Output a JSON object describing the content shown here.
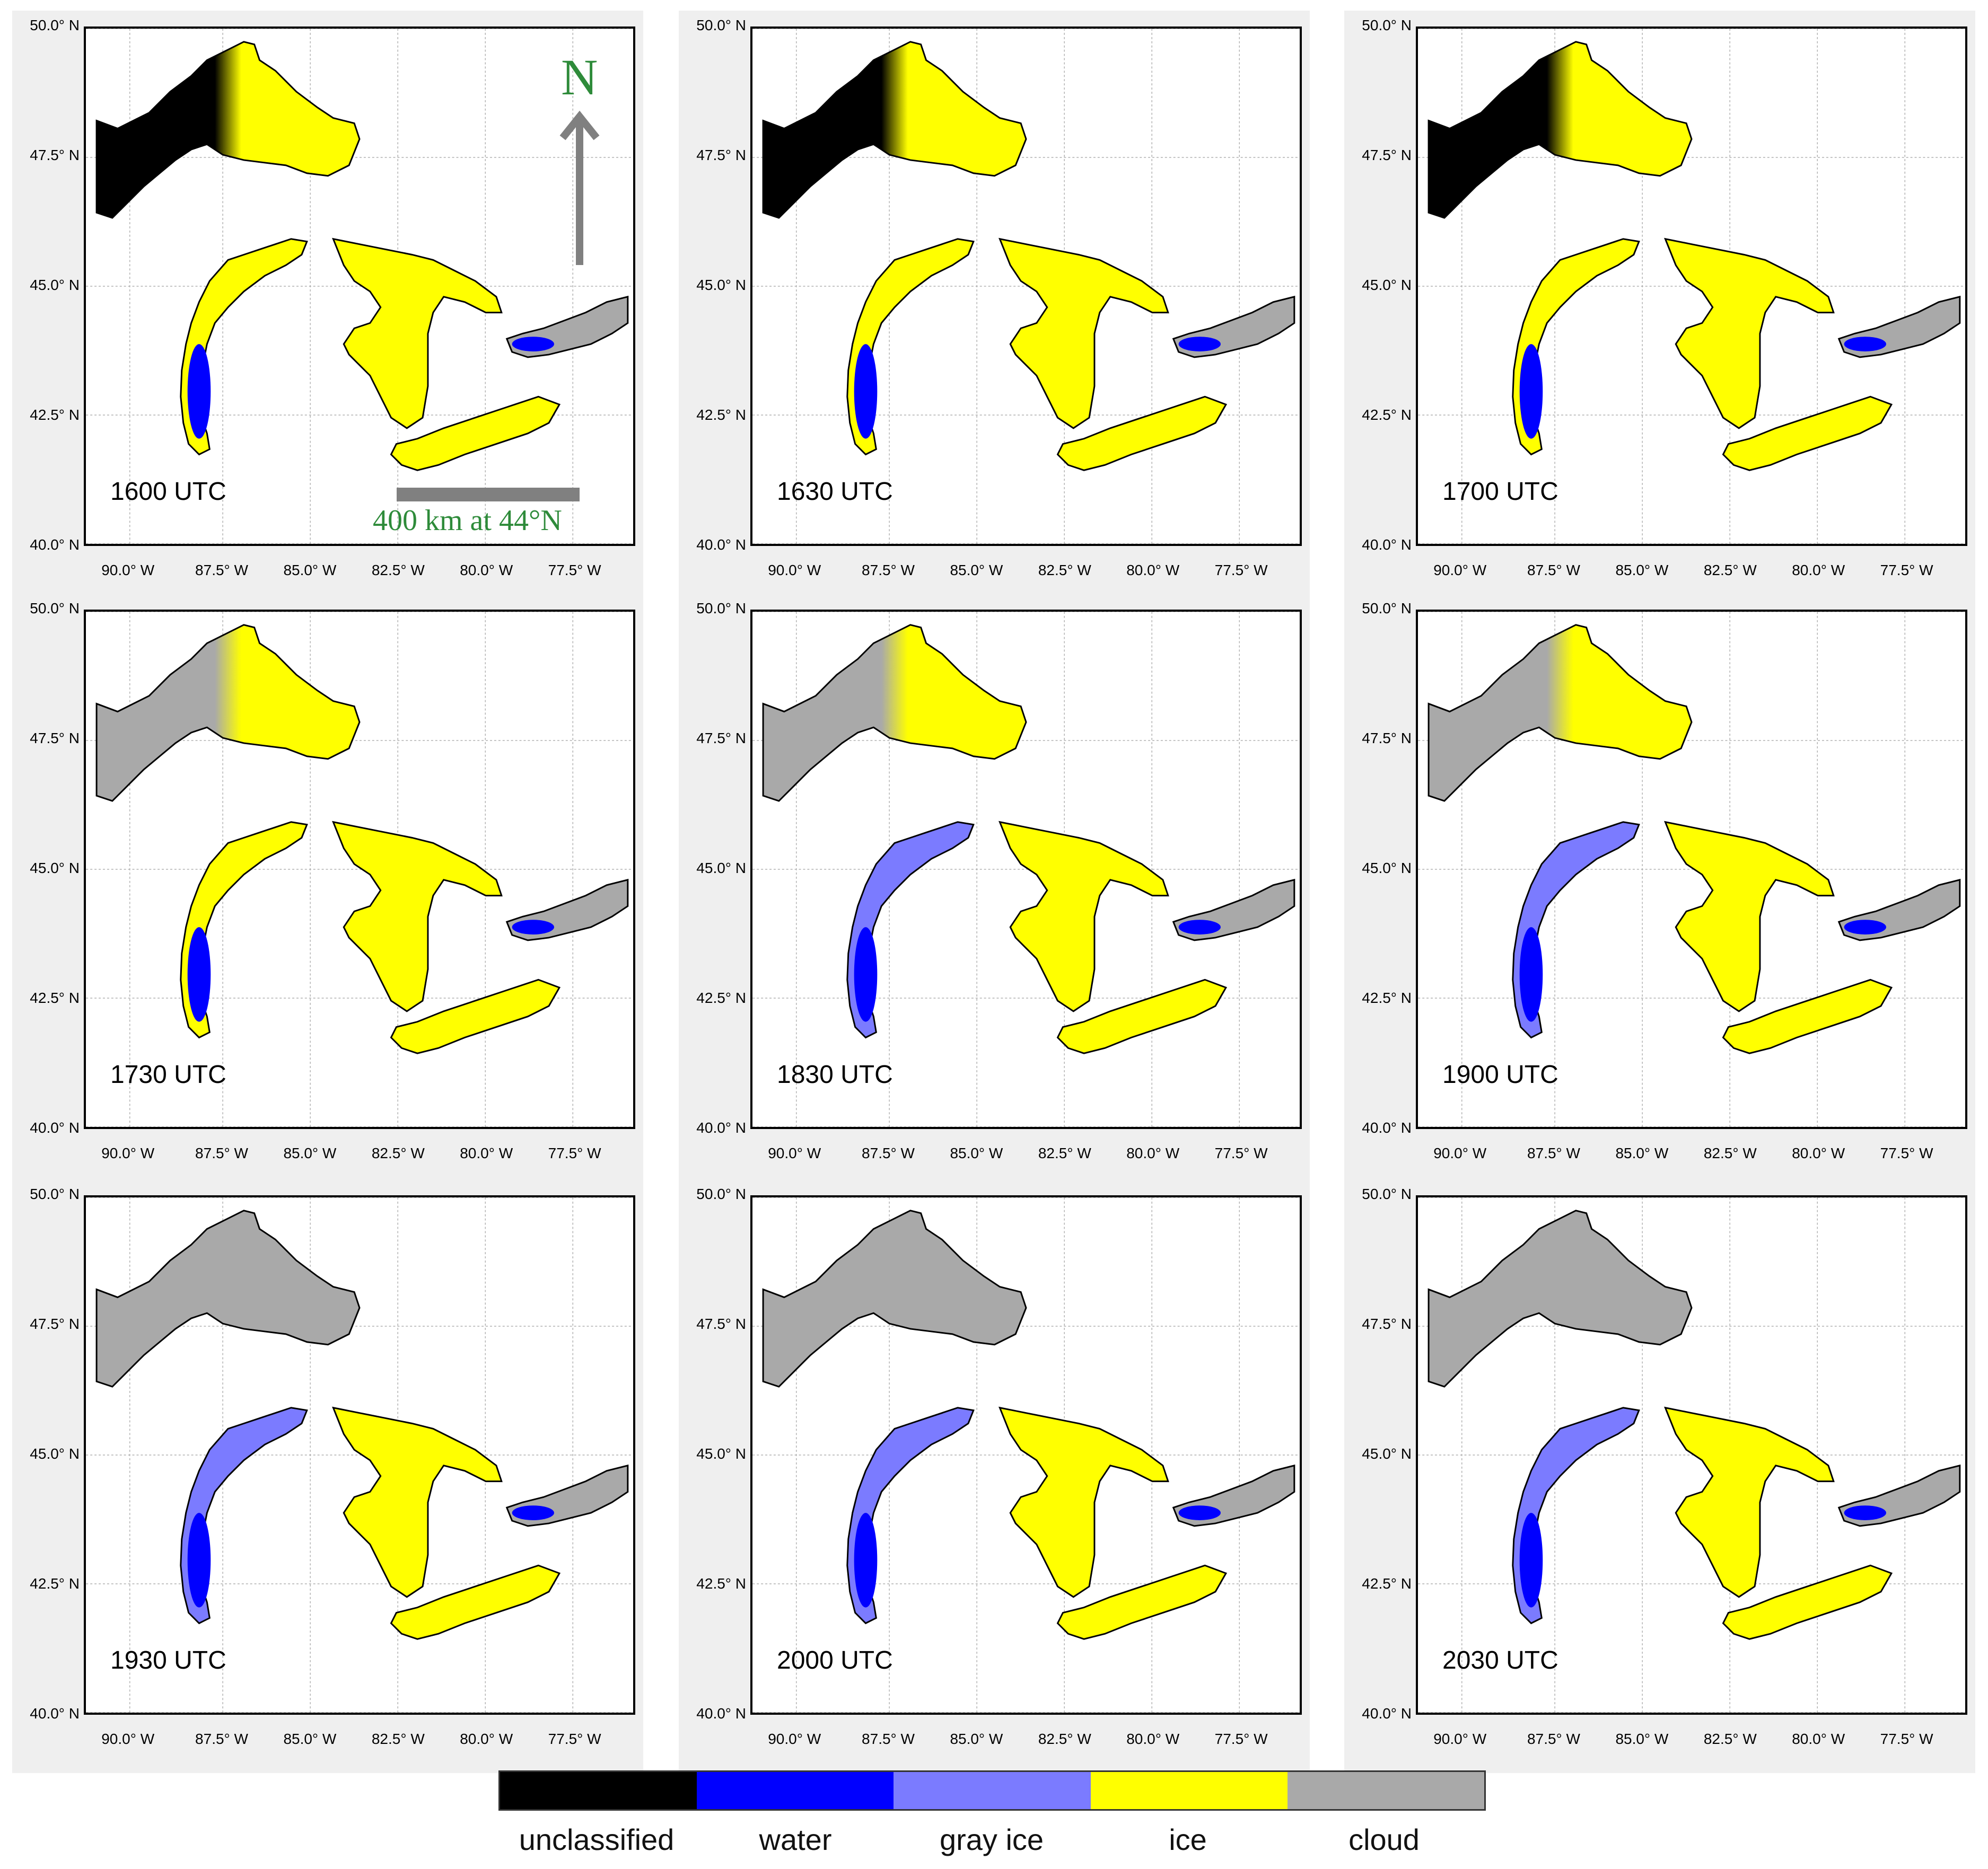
{
  "axes": {
    "lat_ticks": [
      "50.0° N",
      "47.5° N",
      "45.0° N",
      "42.5° N",
      "40.0° N"
    ],
    "lon_ticks": [
      "90.0° W",
      "87.5° W",
      "85.0° W",
      "82.5° W",
      "80.0° W",
      "77.5° W"
    ]
  },
  "panels": [
    {
      "time": "1600 UTC"
    },
    {
      "time": "1630 UTC"
    },
    {
      "time": "1700 UTC"
    },
    {
      "time": "1730 UTC"
    },
    {
      "time": "1830 UTC"
    },
    {
      "time": "1900 UTC"
    },
    {
      "time": "1930 UTC"
    },
    {
      "time": "2000 UTC"
    },
    {
      "time": "2030 UTC"
    }
  ],
  "annotations": {
    "north_label": "N",
    "scale_label": "400 km at 44°N",
    "annotation_color": "#2e8b3a"
  },
  "legend": [
    {
      "label": "unclassified",
      "color": "#000000"
    },
    {
      "label": "water",
      "color": "#0000ff"
    },
    {
      "label": "gray ice",
      "color": "#7b7bff"
    },
    {
      "label": "ice",
      "color": "#ffff00"
    },
    {
      "label": "cloud",
      "color": "#a9a9a9"
    }
  ]
}
